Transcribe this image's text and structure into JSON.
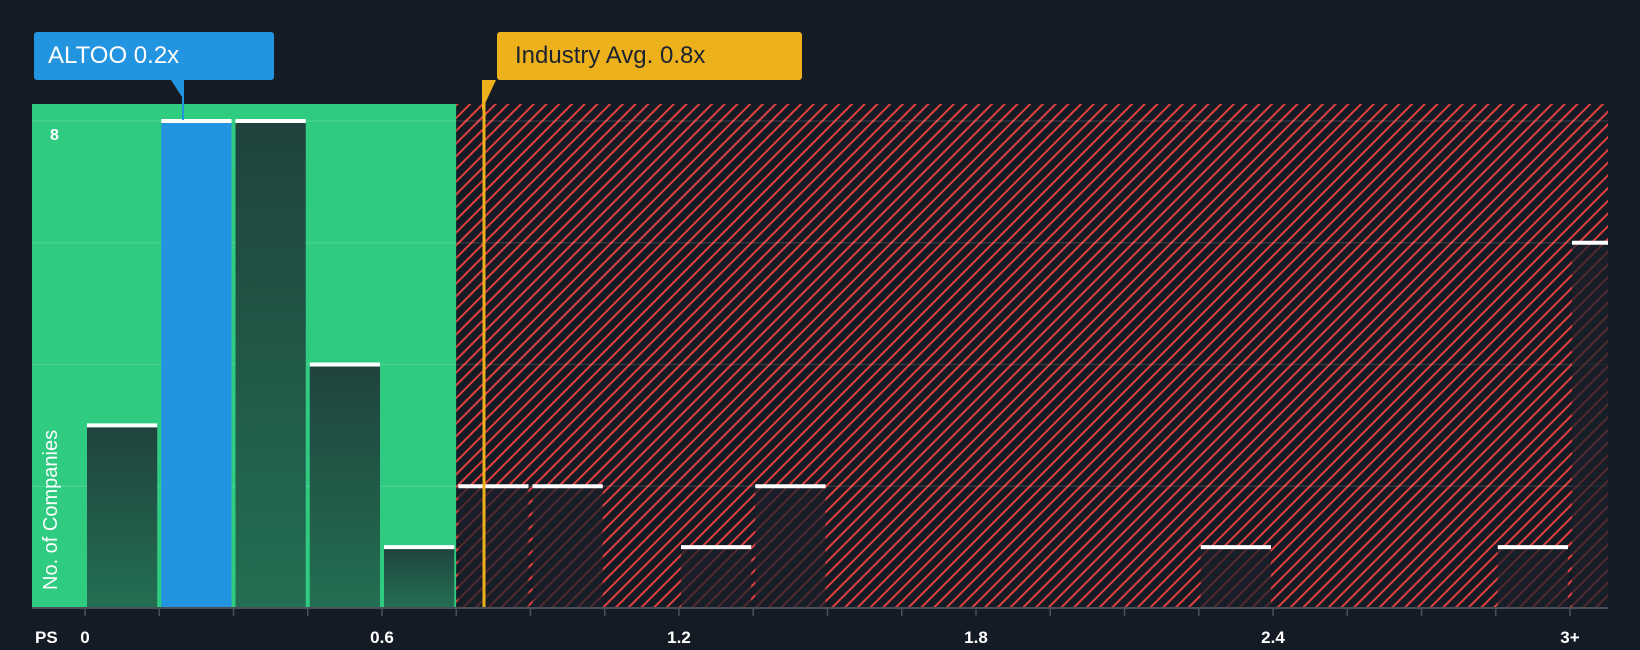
{
  "chart_data": {
    "type": "bar",
    "title": "",
    "xlabel": "PS",
    "ylabel": "No. of Companies",
    "ylim": [
      0,
      8
    ],
    "y_ticks_shown": [
      8
    ],
    "gridlines_at": [
      0,
      2,
      4,
      6,
      8
    ],
    "x_tick_labels": [
      "0",
      "0.6",
      "1.2",
      "1.8",
      "2.4",
      "3+"
    ],
    "bin_width": 0.15,
    "categories": [
      "0-0.15",
      "0.15-0.3",
      "0.3-0.45",
      "0.45-0.6",
      "0.6-0.75",
      "0.75-0.9",
      "0.9-1.05",
      "1.05-1.2",
      "1.2-1.35",
      "1.35-1.5",
      "1.5-1.65",
      "1.65-1.8",
      "1.8-1.95",
      "1.95-2.1",
      "2.1-2.25",
      "2.25-2.4",
      "2.4-2.55",
      "2.55-2.7",
      "2.7-2.85",
      "2.85-3.0",
      "3+"
    ],
    "values": [
      3,
      8,
      8,
      4,
      1,
      2,
      2,
      0,
      1,
      2,
      0,
      0,
      0,
      0,
      0,
      1,
      0,
      0,
      0,
      1,
      6
    ],
    "highlight_bin": "0.15-0.3",
    "fair_zone_max": 0.75,
    "annotations": [
      {
        "label": "ALTOO 0.2x",
        "value": 0.2,
        "color": "#2394df"
      },
      {
        "label": "Industry Avg. 0.8x",
        "value": 0.8,
        "color": "#ecb11b"
      }
    ],
    "colors": {
      "background": "#151b24",
      "undervalued_zone": "#2ecb80",
      "overvalued_hatch": "#e0413f",
      "bar": "#21493f",
      "highlight_bar": "#2394df",
      "bar_top": "#ffffff"
    }
  },
  "labels": {
    "company_callout": "ALTOO 0.2x",
    "industry_callout": "Industry Avg. 0.8x",
    "y_title": "No. of Companies",
    "y_tick_top": "8",
    "x_title": "PS",
    "x_ticks": [
      "0",
      "0.6",
      "1.2",
      "1.8",
      "2.4",
      "3+"
    ]
  }
}
